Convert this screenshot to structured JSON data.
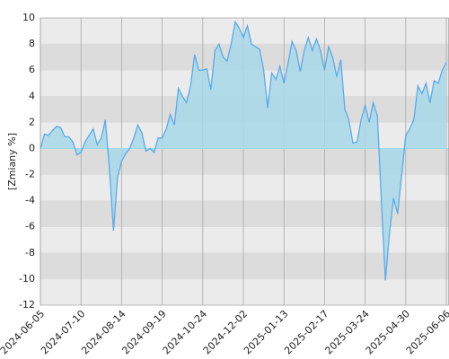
{
  "chart_data": {
    "type": "area",
    "y_label": "[Zmiany %]",
    "categories": [
      "2024-06-05",
      null,
      null,
      null,
      null,
      null,
      null,
      null,
      null,
      null,
      "2024-07-10",
      null,
      null,
      null,
      null,
      null,
      null,
      null,
      null,
      null,
      "2024-08-14",
      null,
      null,
      null,
      null,
      null,
      null,
      null,
      null,
      null,
      "2024-09-19",
      null,
      null,
      null,
      null,
      null,
      null,
      null,
      null,
      null,
      "2024-10-24",
      null,
      null,
      null,
      null,
      null,
      null,
      null,
      null,
      null,
      "2024-12-02",
      null,
      null,
      null,
      null,
      null,
      null,
      null,
      null,
      null,
      "2025-01-13",
      null,
      null,
      null,
      null,
      null,
      null,
      null,
      null,
      null,
      "2025-02-17",
      null,
      null,
      null,
      null,
      null,
      null,
      null,
      null,
      null,
      "2025-03-24",
      null,
      null,
      null,
      null,
      null,
      null,
      null,
      null,
      null,
      "2025-04-30",
      null,
      null,
      null,
      null,
      null,
      null,
      null,
      null,
      null,
      "2025-06-06"
    ],
    "series": [
      {
        "color": "#5aaae8",
        "fill": "#a8d8ea",
        "values": [
          0,
          1.1,
          1.0,
          1.4,
          1.7,
          1.6,
          0.9,
          0.9,
          0.5,
          -0.5,
          -0.3,
          0.5,
          1.0,
          1.5,
          0.3,
          0.8,
          2.2,
          -1.5,
          -6.3,
          -2.2,
          -1.0,
          -0.4,
          0.0,
          0.8,
          1.8,
          1.2,
          -0.2,
          0.0,
          -0.3,
          0.8,
          0.8,
          1.5,
          2.6,
          1.8,
          4.6,
          4.0,
          3.5,
          4.8,
          7.2,
          6.0,
          6.0,
          6.1,
          4.5,
          7.5,
          8.0,
          7.0,
          6.7,
          8.0,
          9.7,
          9.2,
          8.5,
          9.4,
          8.0,
          7.8,
          7.6,
          6.0,
          3.1,
          5.8,
          5.3,
          6.3,
          5.0,
          6.5,
          8.2,
          7.5,
          5.9,
          7.5,
          8.5,
          7.5,
          8.4,
          7.5,
          6.0,
          7.8,
          7.0,
          5.5,
          6.8,
          3.0,
          2.2,
          0.4,
          0.5,
          2.2,
          3.3,
          2.0,
          3.5,
          2.5,
          -4.0,
          -10.1,
          -6.5,
          -3.8,
          -5.0,
          -2.0,
          1.0,
          1.5,
          2.2,
          4.8,
          4.2,
          5.0,
          3.5,
          5.2,
          5.0,
          6.0,
          6.6
        ]
      }
    ],
    "ylim": [
      -12,
      10
    ],
    "yticks": [
      -12,
      -10,
      -8,
      -6,
      -4,
      -2,
      0,
      2,
      4,
      6,
      8,
      10
    ],
    "grid": true
  }
}
